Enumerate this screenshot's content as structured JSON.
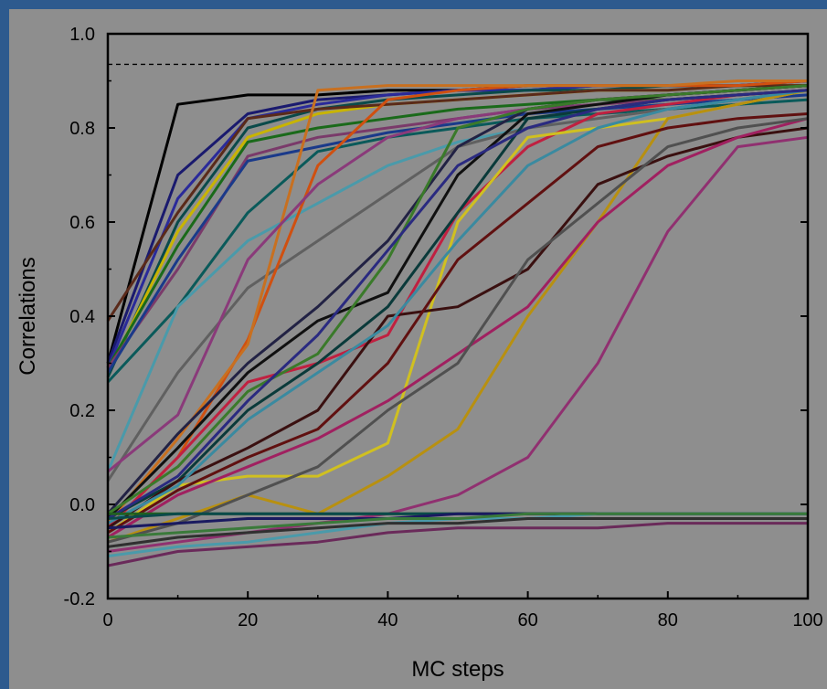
{
  "chart_data": {
    "type": "line",
    "xlabel": "MC steps",
    "ylabel": "Correlations",
    "xlim": [
      0,
      100
    ],
    "ylim": [
      -0.2,
      1.0
    ],
    "x_ticks": [
      0,
      20,
      40,
      60,
      80,
      100
    ],
    "x_tick_labels": [
      "0",
      "20",
      "40",
      "60",
      "80",
      "100"
    ],
    "y_ticks": [
      -0.2,
      0.0,
      0.2,
      0.4,
      0.6,
      0.8,
      1.0
    ],
    "y_tick_labels": [
      "-0.2",
      "0.0",
      "0.2",
      "0.4",
      "0.6",
      "0.8",
      "1.0"
    ],
    "reference_line": {
      "y": 0.935,
      "style": "dashed"
    },
    "grid": false,
    "legend": "none",
    "x": [
      0,
      10,
      20,
      30,
      40,
      50,
      60,
      70,
      80,
      90,
      100
    ],
    "series": [
      {
        "color": "#000000",
        "values": [
          0.3,
          0.85,
          0.87,
          0.87,
          0.88,
          0.88,
          0.89,
          0.89,
          0.89,
          0.89,
          0.89
        ]
      },
      {
        "color": "#1a1a6e",
        "values": [
          0.3,
          0.7,
          0.83,
          0.86,
          0.87,
          0.88,
          0.88,
          0.89,
          0.89,
          0.89,
          0.9
        ]
      },
      {
        "color": "#2a2a9a",
        "values": [
          0.29,
          0.65,
          0.82,
          0.85,
          0.87,
          0.88,
          0.88,
          0.89,
          0.89,
          0.89,
          0.9
        ]
      },
      {
        "color": "#0a4a4a",
        "values": [
          0.27,
          0.6,
          0.8,
          0.84,
          0.86,
          0.87,
          0.88,
          0.88,
          0.89,
          0.89,
          0.89
        ]
      },
      {
        "color": "#c8b400",
        "values": [
          0.28,
          0.58,
          0.78,
          0.83,
          0.85,
          0.86,
          0.87,
          0.88,
          0.88,
          0.89,
          0.89
        ]
      },
      {
        "color": "#5a2a1a",
        "values": [
          0.39,
          0.62,
          0.82,
          0.84,
          0.85,
          0.86,
          0.87,
          0.88,
          0.88,
          0.89,
          0.89
        ]
      },
      {
        "color": "#1a6a1a",
        "values": [
          0.29,
          0.55,
          0.77,
          0.8,
          0.82,
          0.84,
          0.85,
          0.86,
          0.86,
          0.87,
          0.88
        ]
      },
      {
        "color": "#7a3a6a",
        "values": [
          0.29,
          0.5,
          0.74,
          0.78,
          0.8,
          0.82,
          0.84,
          0.85,
          0.86,
          0.87,
          0.88
        ]
      },
      {
        "color": "#1a3a8a",
        "values": [
          0.28,
          0.52,
          0.73,
          0.76,
          0.79,
          0.81,
          0.83,
          0.84,
          0.85,
          0.86,
          0.87
        ]
      },
      {
        "color": "#0a5a5a",
        "values": [
          0.26,
          0.42,
          0.62,
          0.75,
          0.78,
          0.8,
          0.82,
          0.83,
          0.84,
          0.85,
          0.86
        ]
      },
      {
        "color": "#4a9aaa",
        "values": [
          0.07,
          0.42,
          0.56,
          0.64,
          0.72,
          0.77,
          0.8,
          0.82,
          0.84,
          0.86,
          0.88
        ]
      },
      {
        "color": "#606060",
        "values": [
          0.05,
          0.28,
          0.46,
          0.56,
          0.66,
          0.76,
          0.8,
          0.82,
          0.84,
          0.86,
          0.88
        ]
      },
      {
        "color": "#d05010",
        "values": [
          -0.05,
          0.1,
          0.35,
          0.72,
          0.86,
          0.88,
          0.89,
          0.89,
          0.89,
          0.89,
          0.9
        ]
      },
      {
        "color": "#c87020",
        "values": [
          -0.04,
          0.14,
          0.34,
          0.88,
          0.89,
          0.89,
          0.89,
          0.89,
          0.89,
          0.9,
          0.9
        ]
      },
      {
        "color": "#8a3a7a",
        "values": [
          0.07,
          0.19,
          0.52,
          0.68,
          0.78,
          0.82,
          0.84,
          0.86,
          0.87,
          0.88,
          0.89
        ]
      },
      {
        "color": "#222244",
        "values": [
          -0.02,
          0.15,
          0.3,
          0.42,
          0.56,
          0.76,
          0.84,
          0.86,
          0.87,
          0.88,
          0.89
        ]
      },
      {
        "color": "#101010",
        "values": [
          -0.03,
          0.12,
          0.28,
          0.39,
          0.45,
          0.7,
          0.83,
          0.85,
          0.87,
          0.88,
          0.89
        ]
      },
      {
        "color": "#c02040",
        "values": [
          -0.05,
          0.1,
          0.26,
          0.3,
          0.36,
          0.62,
          0.76,
          0.83,
          0.85,
          0.87,
          0.88
        ]
      },
      {
        "color": "#3a7a2a",
        "values": [
          -0.02,
          0.08,
          0.24,
          0.32,
          0.52,
          0.8,
          0.84,
          0.86,
          0.87,
          0.88,
          0.89
        ]
      },
      {
        "color": "#0a3a3a",
        "values": [
          -0.03,
          0.05,
          0.2,
          0.3,
          0.42,
          0.62,
          0.82,
          0.84,
          0.86,
          0.87,
          0.88
        ]
      },
      {
        "color": "#d0c020",
        "values": [
          -0.06,
          0.04,
          0.06,
          0.06,
          0.13,
          0.6,
          0.78,
          0.8,
          0.82,
          0.85,
          0.88
        ]
      },
      {
        "color": "#b89010",
        "values": [
          -0.08,
          -0.03,
          0.02,
          -0.02,
          0.06,
          0.16,
          0.4,
          0.6,
          0.82,
          0.85,
          0.88
        ]
      },
      {
        "color": "#3a1010",
        "values": [
          -0.05,
          0.05,
          0.12,
          0.2,
          0.4,
          0.42,
          0.5,
          0.68,
          0.74,
          0.78,
          0.8
        ]
      },
      {
        "color": "#601010",
        "values": [
          -0.06,
          0.03,
          0.1,
          0.16,
          0.3,
          0.52,
          0.64,
          0.76,
          0.8,
          0.82,
          0.83
        ]
      },
      {
        "color": "#a02060",
        "values": [
          -0.07,
          0.02,
          0.08,
          0.14,
          0.22,
          0.32,
          0.42,
          0.6,
          0.72,
          0.78,
          0.82
        ]
      },
      {
        "color": "#903070",
        "values": [
          -0.1,
          -0.08,
          -0.06,
          -0.04,
          -0.02,
          0.02,
          0.1,
          0.3,
          0.58,
          0.76,
          0.78
        ]
      },
      {
        "color": "#505050",
        "values": [
          -0.08,
          -0.04,
          0.02,
          0.08,
          0.2,
          0.3,
          0.52,
          0.64,
          0.76,
          0.8,
          0.82
        ]
      },
      {
        "color": "#3a8aa0",
        "values": [
          -0.04,
          0.04,
          0.18,
          0.28,
          0.38,
          0.56,
          0.72,
          0.8,
          0.84,
          0.86,
          0.88
        ]
      },
      {
        "color": "#2a2a80",
        "values": [
          -0.03,
          0.06,
          0.22,
          0.36,
          0.54,
          0.72,
          0.8,
          0.84,
          0.86,
          0.87,
          0.88
        ]
      },
      {
        "color": "#206020",
        "values": [
          -0.02,
          -0.02,
          -0.02,
          -0.02,
          -0.02,
          -0.02,
          -0.02,
          -0.02,
          -0.02,
          -0.02,
          -0.02
        ]
      },
      {
        "color": "#0a4a4a",
        "values": [
          -0.03,
          -0.02,
          -0.02,
          -0.02,
          -0.02,
          -0.02,
          -0.02,
          -0.02,
          -0.02,
          -0.02,
          -0.02
        ]
      },
      {
        "color": "#1a1a60",
        "values": [
          -0.05,
          -0.04,
          -0.03,
          -0.03,
          -0.03,
          -0.02,
          -0.02,
          -0.02,
          -0.02,
          -0.02,
          -0.02
        ]
      },
      {
        "color": "#4a9aaa",
        "values": [
          -0.11,
          -0.09,
          -0.08,
          -0.06,
          -0.04,
          -0.03,
          -0.03,
          -0.02,
          -0.02,
          -0.02,
          -0.02
        ]
      },
      {
        "color": "#303030",
        "values": [
          -0.09,
          -0.07,
          -0.06,
          -0.05,
          -0.04,
          -0.04,
          -0.03,
          -0.03,
          -0.03,
          -0.03,
          -0.03
        ]
      },
      {
        "color": "#6a2a5a",
        "values": [
          -0.13,
          -0.1,
          -0.09,
          -0.08,
          -0.06,
          -0.05,
          -0.05,
          -0.05,
          -0.04,
          -0.04,
          -0.04
        ]
      },
      {
        "color": "#3a7a3a",
        "values": [
          -0.07,
          -0.06,
          -0.05,
          -0.04,
          -0.03,
          -0.03,
          -0.02,
          -0.02,
          -0.02,
          -0.02,
          -0.02
        ]
      }
    ]
  }
}
